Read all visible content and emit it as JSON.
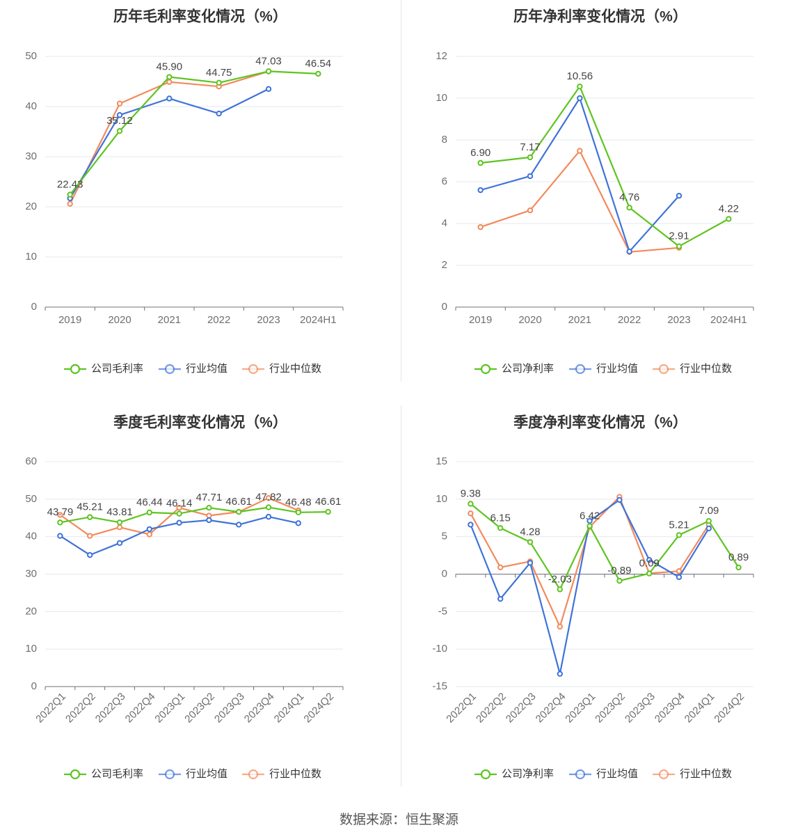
{
  "colors": {
    "company": "#5ec421",
    "avg": "#3f73d8",
    "median": "#f28a5c",
    "grid": "#e6e8f0",
    "axis": "#6e7079"
  },
  "legend": {
    "company_gross": "公司毛利率",
    "company_net": "公司净利率",
    "avg": "行业均值",
    "median": "行业中位数"
  },
  "source": "数据来源：恒生聚源",
  "chart_data": [
    {
      "id": "annual-gross",
      "type": "line",
      "title": "历年毛利率变化情况（%）",
      "categories": [
        "2019",
        "2020",
        "2021",
        "2022",
        "2023",
        "2024H1"
      ],
      "ylim": [
        0,
        50
      ],
      "yticks": [
        0,
        10,
        20,
        30,
        40,
        50
      ],
      "legend_key": "company_gross",
      "series": [
        {
          "name": "行业中位数",
          "key": "median",
          "values": [
            20.6,
            40.6,
            44.9,
            44.0,
            47.0,
            null
          ]
        },
        {
          "name": "行业均值",
          "key": "avg",
          "values": [
            21.7,
            38.3,
            41.6,
            38.6,
            43.5,
            null
          ]
        },
        {
          "name": "公司毛利率",
          "key": "company",
          "values": [
            22.43,
            35.12,
            45.9,
            44.75,
            47.03,
            46.54
          ],
          "labels": [
            "22.43",
            "35.12",
            "45.90",
            "44.75",
            "47.03",
            "46.54"
          ]
        }
      ]
    },
    {
      "id": "annual-net",
      "type": "line",
      "title": "历年净利率变化情况（%）",
      "categories": [
        "2019",
        "2020",
        "2021",
        "2022",
        "2023",
        "2024H1"
      ],
      "ylim": [
        0,
        12
      ],
      "yticks": [
        0,
        2,
        4,
        6,
        8,
        10,
        12
      ],
      "legend_key": "company_net",
      "series": [
        {
          "name": "行业中位数",
          "key": "median",
          "values": [
            3.83,
            4.63,
            7.48,
            2.64,
            2.84,
            null
          ]
        },
        {
          "name": "行业均值",
          "key": "avg",
          "values": [
            5.6,
            6.27,
            10.0,
            2.66,
            5.33,
            null
          ]
        },
        {
          "name": "公司净利率",
          "key": "company",
          "values": [
            6.9,
            7.17,
            10.56,
            4.76,
            2.91,
            4.22
          ],
          "labels": [
            "6.90",
            "7.17",
            "10.56",
            "4.76",
            "2.91",
            "4.22"
          ]
        }
      ]
    },
    {
      "id": "quarterly-gross",
      "type": "line",
      "title": "季度毛利率变化情况（%）",
      "categories": [
        "2022Q1",
        "2022Q2",
        "2022Q3",
        "2022Q4",
        "2023Q1",
        "2023Q2",
        "2023Q3",
        "2023Q4",
        "2024Q1",
        "2024Q2"
      ],
      "ylim": [
        0,
        60
      ],
      "yticks": [
        0,
        10,
        20,
        30,
        40,
        50,
        60
      ],
      "legend_key": "company_gross",
      "series": [
        {
          "name": "行业中位数",
          "key": "median",
          "values": [
            45.8,
            40.2,
            42.5,
            40.6,
            47.7,
            45.6,
            46.6,
            50.3,
            47.0,
            null
          ]
        },
        {
          "name": "行业均值",
          "key": "avg",
          "values": [
            40.2,
            35.1,
            38.3,
            42.0,
            43.7,
            44.4,
            43.2,
            45.3,
            43.6,
            null
          ]
        },
        {
          "name": "公司毛利率",
          "key": "company",
          "values": [
            43.79,
            45.21,
            43.81,
            46.44,
            46.14,
            47.71,
            46.61,
            47.82,
            46.48,
            46.61
          ],
          "labels": [
            "43.79",
            "45.21",
            "43.81",
            "46.44",
            "46.14",
            "47.71",
            "46.61",
            "47.82",
            "46.48",
            "46.61"
          ]
        }
      ]
    },
    {
      "id": "quarterly-net",
      "type": "line",
      "title": "季度净利率变化情况（%）",
      "categories": [
        "2022Q1",
        "2022Q2",
        "2022Q3",
        "2022Q4",
        "2023Q1",
        "2023Q2",
        "2023Q3",
        "2023Q4",
        "2024Q1",
        "2024Q2"
      ],
      "ylim": [
        -15,
        15
      ],
      "yticks": [
        -15,
        -10,
        -5,
        0,
        5,
        10,
        15
      ],
      "legend_key": "company_net",
      "series": [
        {
          "name": "行业中位数",
          "key": "median",
          "values": [
            8.1,
            0.9,
            1.7,
            -7.0,
            6.3,
            10.3,
            0.1,
            0.4,
            6.6,
            null
          ]
        },
        {
          "name": "行业均值",
          "key": "avg",
          "values": [
            6.6,
            -3.3,
            1.5,
            -13.3,
            7.1,
            9.9,
            1.9,
            -0.4,
            6.1,
            null
          ]
        },
        {
          "name": "公司净利率",
          "key": "company",
          "values": [
            9.38,
            6.15,
            4.28,
            -2.03,
            6.42,
            -0.89,
            0.09,
            5.21,
            7.09,
            0.89
          ],
          "labels": [
            "9.38",
            "6.15",
            "4.28",
            "-2.03",
            "6.42",
            "-0.89",
            "0.09",
            "5.21",
            "7.09",
            "0.89"
          ]
        }
      ]
    }
  ]
}
